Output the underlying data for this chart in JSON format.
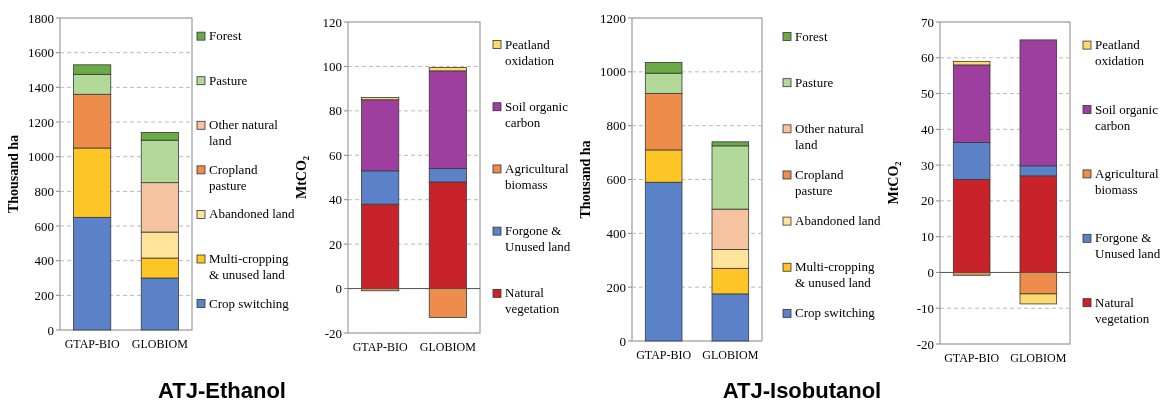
{
  "chart_data": [
    {
      "type": "bar",
      "stacked": true,
      "title": "ATJ-Ethanol",
      "categories": [
        "GTAP-BIO",
        "GLOBIOM"
      ],
      "ylabel": "Thousand ha",
      "ylim": [
        0,
        1800
      ],
      "yticks": [
        0,
        200,
        400,
        600,
        800,
        1000,
        1200,
        1400,
        1600,
        1800
      ],
      "grid": "y",
      "legend": "right",
      "series": [
        {
          "name": "Crop switching",
          "color": "#5b82c9",
          "values": [
            650,
            300
          ]
        },
        {
          "name": "Multi-cropping & unused land",
          "color": "#fdc526",
          "values": [
            400,
            115
          ]
        },
        {
          "name": "Abandoned land",
          "color": "#fee49a",
          "values": [
            0,
            150
          ]
        },
        {
          "name": "Cropland pasture",
          "color": "#ee8d4b",
          "values": [
            310,
            0
          ]
        },
        {
          "name": "Other natural land",
          "color": "#f6c3a0",
          "values": [
            0,
            285
          ]
        },
        {
          "name": "Pasture",
          "color": "#b2d89a",
          "values": [
            115,
            245
          ]
        },
        {
          "name": "Forest",
          "color": "#6aaa47",
          "values": [
            55,
            45
          ]
        }
      ]
    },
    {
      "type": "bar",
      "stacked": true,
      "categories": [
        "GTAP-BIO",
        "GLOBIOM"
      ],
      "ylabel": "MtCO₂",
      "ylim": [
        -20,
        120
      ],
      "yticks": [
        -20,
        0,
        20,
        40,
        60,
        80,
        100,
        120
      ],
      "grid": "y",
      "legend": "right",
      "series": [
        {
          "name": "Natural vegetation",
          "color": "#c8232a",
          "values": [
            38,
            48
          ]
        },
        {
          "name": "Forgone & Unused land",
          "color": "#5b82c9",
          "values": [
            15,
            6
          ]
        },
        {
          "name": "Agricultural biomass",
          "color": "#ee8d4b",
          "values": [
            -1,
            -13
          ]
        },
        {
          "name": "Soil organic carbon",
          "color": "#9e3fa0",
          "values": [
            32,
            44
          ]
        },
        {
          "name": "Peatland oxidation",
          "color": "#fdda6e",
          "values": [
            1,
            1.5
          ]
        }
      ]
    },
    {
      "type": "bar",
      "stacked": true,
      "title": "ATJ-Isobutanol",
      "categories": [
        "GTAP-BIO",
        "GLOBIOM"
      ],
      "ylabel": "Thousand ha",
      "ylim": [
        0,
        1200
      ],
      "yticks": [
        0,
        200,
        400,
        600,
        800,
        1000,
        1200
      ],
      "grid": "y",
      "legend": "right",
      "series": [
        {
          "name": "Crop switching",
          "color": "#5b82c9",
          "values": [
            590,
            175
          ]
        },
        {
          "name": "Multi-cropping & unused land",
          "color": "#fdc526",
          "values": [
            120,
            95
          ]
        },
        {
          "name": "Abandoned land",
          "color": "#fee49a",
          "values": [
            0,
            70
          ]
        },
        {
          "name": "Cropland pasture",
          "color": "#ee8d4b",
          "values": [
            210,
            0
          ]
        },
        {
          "name": "Other natural land",
          "color": "#f6c3a0",
          "values": [
            0,
            150
          ]
        },
        {
          "name": "Pasture",
          "color": "#b2d89a",
          "values": [
            75,
            235
          ]
        },
        {
          "name": "Forest",
          "color": "#6aaa47",
          "values": [
            40,
            15
          ]
        }
      ]
    },
    {
      "type": "bar",
      "stacked": true,
      "categories": [
        "GTAP-BIO",
        "GLOBIOM"
      ],
      "ylabel": "MtCO₂",
      "ylim": [
        -20,
        70
      ],
      "yticks": [
        -20,
        -10,
        0,
        10,
        20,
        30,
        40,
        50,
        60,
        70
      ],
      "grid": "y",
      "legend": "right",
      "series": [
        {
          "name": "Natural vegetation",
          "color": "#c8232a",
          "values": [
            26,
            27
          ]
        },
        {
          "name": "Forgone & Unused land",
          "color": "#5b82c9",
          "values": [
            10.3,
            2.8
          ]
        },
        {
          "name": "Agricultural biomass",
          "color": "#ee8d4b",
          "values": [
            -0.8,
            -6
          ]
        },
        {
          "name": "Soil organic carbon",
          "color": "#9e3fa0",
          "values": [
            21.7,
            35.2
          ]
        },
        {
          "name": "Peatland oxidation",
          "color": "#fdda6e",
          "values": [
            1,
            -2.8
          ]
        }
      ]
    }
  ]
}
